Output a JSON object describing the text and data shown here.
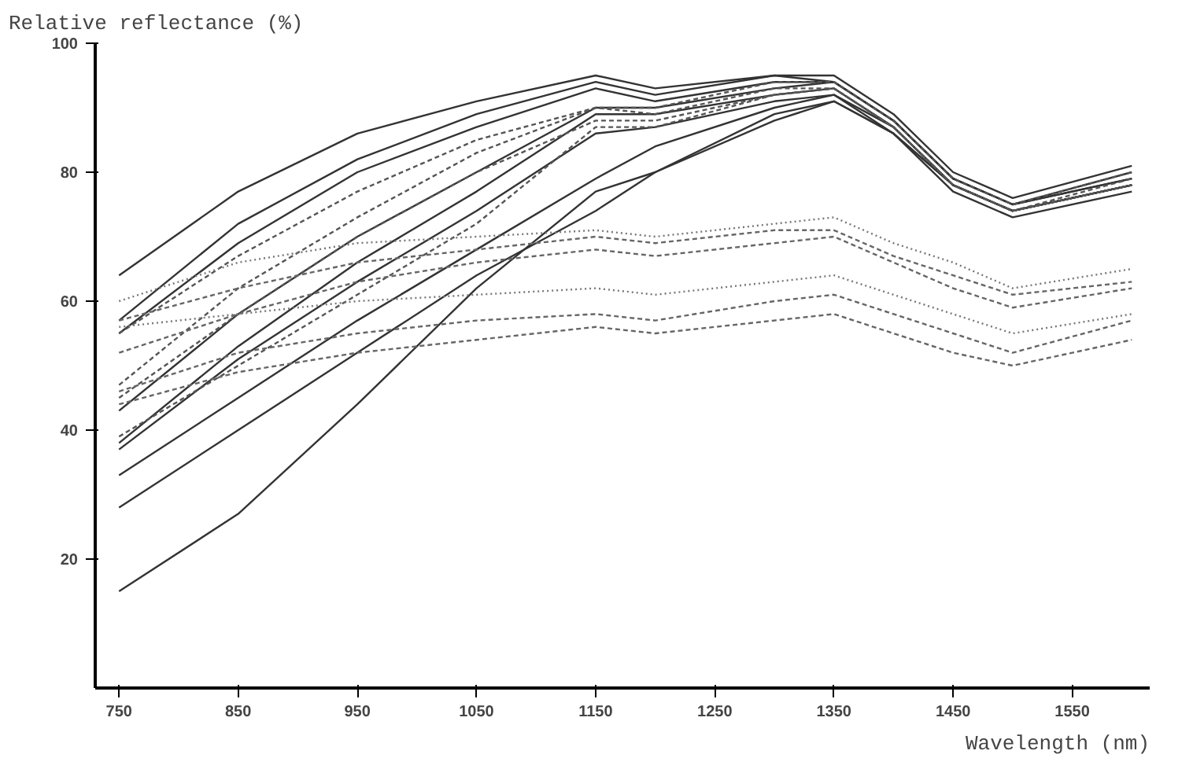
{
  "chart_data": {
    "type": "line",
    "xlabel": "Wavelength (nm)",
    "ylabel": "Relative reflectance (%)",
    "x": [
      750,
      850,
      950,
      1050,
      1150,
      1200,
      1300,
      1350,
      1400,
      1450,
      1500,
      1600
    ],
    "xlim": [
      730,
      1615
    ],
    "ylim": [
      0,
      100
    ],
    "xticks": [
      750,
      850,
      950,
      1050,
      1150,
      1250,
      1350,
      1450,
      1550
    ],
    "yticks": [
      20,
      40,
      60,
      80,
      100
    ],
    "grid": false,
    "series": [
      {
        "color": "#333333",
        "line_style": "solid",
        "values": [
          64,
          77,
          86,
          91,
          95,
          93,
          95,
          95,
          89,
          80,
          76,
          81
        ]
      },
      {
        "color": "#333333",
        "line_style": "solid",
        "values": [
          57,
          72,
          82,
          89,
          94,
          92,
          95,
          94,
          88,
          79,
          75,
          80
        ]
      },
      {
        "color": "#333333",
        "line_style": "solid",
        "values": [
          55,
          69,
          80,
          87,
          93,
          91,
          94,
          94,
          88,
          79,
          75,
          79
        ]
      },
      {
        "color": "#333333",
        "line_style": "solid",
        "values": [
          43,
          58,
          70,
          80,
          90,
          90,
          93,
          94,
          88,
          79,
          75,
          79
        ]
      },
      {
        "color": "#333333",
        "line_style": "solid",
        "values": [
          38,
          53,
          66,
          77,
          89,
          89,
          92,
          93,
          87,
          78,
          74,
          78
        ]
      },
      {
        "color": "#333333",
        "line_style": "solid",
        "values": [
          37,
          51,
          63,
          74,
          86,
          87,
          91,
          92,
          87,
          78,
          74,
          78
        ]
      },
      {
        "color": "#333333",
        "line_style": "solid",
        "values": [
          33,
          45,
          57,
          68,
          79,
          84,
          90,
          92,
          86,
          78,
          74,
          78
        ]
      },
      {
        "color": "#333333",
        "line_style": "solid",
        "values": [
          28,
          40,
          52,
          64,
          74,
          80,
          88,
          91,
          86,
          77,
          73,
          77
        ]
      },
      {
        "color": "#333333",
        "line_style": "solid",
        "values": [
          15,
          27,
          44,
          62,
          77,
          80,
          89,
          91,
          86,
          78,
          74,
          78
        ]
      },
      {
        "color": "#555555",
        "line_style": "dashed",
        "values": [
          55,
          67,
          77,
          85,
          90,
          90,
          94,
          94,
          88,
          79,
          75,
          80
        ]
      },
      {
        "color": "#555555",
        "line_style": "dashed",
        "values": [
          47,
          62,
          73,
          83,
          90,
          89,
          93,
          93,
          87,
          78,
          74,
          79
        ]
      },
      {
        "color": "#555555",
        "line_style": "dashed",
        "values": [
          45,
          58,
          70,
          80,
          88,
          88,
          92,
          93,
          87,
          78,
          74,
          78
        ]
      },
      {
        "color": "#555555",
        "line_style": "dashed",
        "values": [
          39,
          50,
          61,
          72,
          87,
          87,
          92,
          93,
          87,
          78,
          74,
          78
        ]
      },
      {
        "color": "#777777",
        "line_style": "dotted",
        "values": [
          60,
          66,
          69,
          70,
          71,
          70,
          72,
          73,
          69,
          66,
          62,
          65
        ]
      },
      {
        "color": "#666666",
        "line_style": "dashed",
        "values": [
          57,
          62,
          66,
          68,
          70,
          69,
          71,
          71,
          67,
          64,
          61,
          63
        ]
      },
      {
        "color": "#666666",
        "line_style": "dashed",
        "values": [
          52,
          58,
          63,
          66,
          68,
          67,
          69,
          70,
          66,
          62,
          59,
          62
        ]
      },
      {
        "color": "#777777",
        "line_style": "dotted",
        "values": [
          56,
          58,
          60,
          61,
          62,
          61,
          63,
          64,
          61,
          58,
          55,
          58
        ]
      },
      {
        "color": "#666666",
        "line_style": "dashed",
        "values": [
          46,
          52,
          55,
          57,
          58,
          57,
          60,
          61,
          58,
          55,
          52,
          57
        ]
      },
      {
        "color": "#666666",
        "line_style": "dashed",
        "values": [
          44,
          49,
          52,
          54,
          56,
          55,
          57,
          58,
          55,
          52,
          50,
          54
        ]
      }
    ]
  }
}
